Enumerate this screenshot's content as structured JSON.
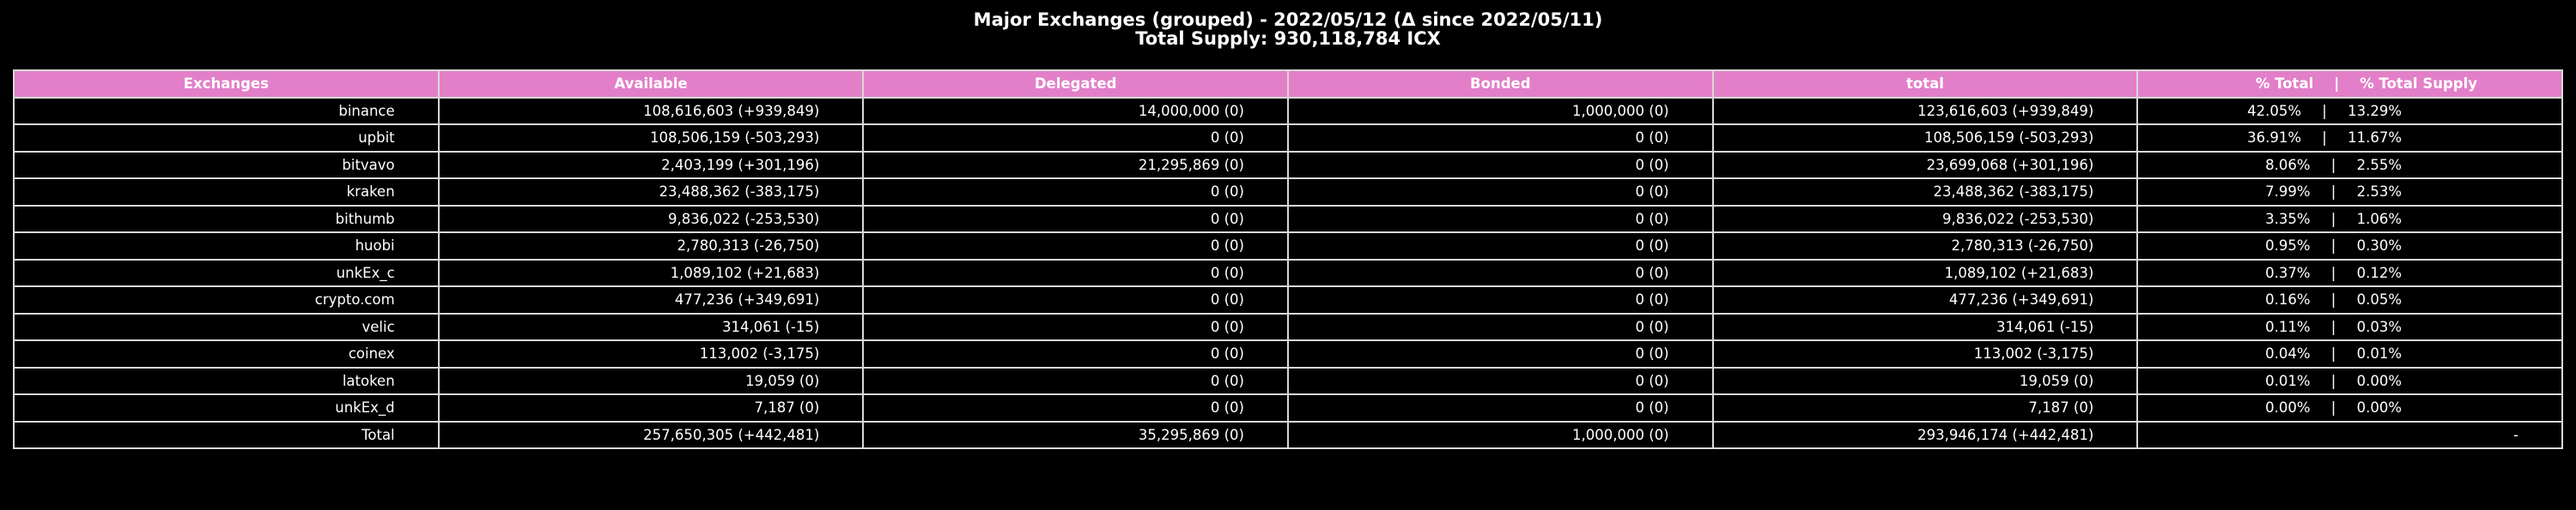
{
  "title": {
    "line1": "Major Exchanges (grouped) - 2022/05/12 (Δ since 2022/05/11)",
    "line2": "Total Supply: 930,118,784 ICX"
  },
  "colors": {
    "background": "#000000",
    "header_fill": "#e27fc8",
    "grid_line": "#d8d8d8",
    "text": "#ffffff"
  },
  "table": {
    "headers": [
      "Exchanges",
      "Available",
      "Delegated",
      "Bonded",
      "total"
    ],
    "share_header": {
      "pct_total": "% Total",
      "separator": "|",
      "pct_supply": "% Total Supply"
    },
    "separator": "|",
    "rows": [
      {
        "name": "binance",
        "available": "108,616,603 (+939,849)",
        "delegated": "14,000,000 (0)",
        "bonded": "1,000,000 (0)",
        "total": "123,616,603 (+939,849)",
        "pct_total": "42.05%",
        "pct_supply": "13.29%"
      },
      {
        "name": "upbit",
        "available": "108,506,159 (-503,293)",
        "delegated": "0 (0)",
        "bonded": "0 (0)",
        "total": "108,506,159 (-503,293)",
        "pct_total": "36.91%",
        "pct_supply": "11.67%"
      },
      {
        "name": "bitvavo",
        "available": "2,403,199 (+301,196)",
        "delegated": "21,295,869 (0)",
        "bonded": "0 (0)",
        "total": "23,699,068 (+301,196)",
        "pct_total": "8.06%",
        "pct_supply": "2.55%"
      },
      {
        "name": "kraken",
        "available": "23,488,362 (-383,175)",
        "delegated": "0 (0)",
        "bonded": "0 (0)",
        "total": "23,488,362 (-383,175)",
        "pct_total": "7.99%",
        "pct_supply": "2.53%"
      },
      {
        "name": "bithumb",
        "available": "9,836,022 (-253,530)",
        "delegated": "0 (0)",
        "bonded": "0 (0)",
        "total": "9,836,022 (-253,530)",
        "pct_total": "3.35%",
        "pct_supply": "1.06%"
      },
      {
        "name": "huobi",
        "available": "2,780,313 (-26,750)",
        "delegated": "0 (0)",
        "bonded": "0 (0)",
        "total": "2,780,313 (-26,750)",
        "pct_total": "0.95%",
        "pct_supply": "0.30%"
      },
      {
        "name": "unkEx_c",
        "available": "1,089,102 (+21,683)",
        "delegated": "0 (0)",
        "bonded": "0 (0)",
        "total": "1,089,102 (+21,683)",
        "pct_total": "0.37%",
        "pct_supply": "0.12%"
      },
      {
        "name": "crypto.com",
        "available": "477,236 (+349,691)",
        "delegated": "0 (0)",
        "bonded": "0 (0)",
        "total": "477,236 (+349,691)",
        "pct_total": "0.16%",
        "pct_supply": "0.05%"
      },
      {
        "name": "velic",
        "available": "314,061 (-15)",
        "delegated": "0 (0)",
        "bonded": "0 (0)",
        "total": "314,061 (-15)",
        "pct_total": "0.11%",
        "pct_supply": "0.03%"
      },
      {
        "name": "coinex",
        "available": "113,002 (-3,175)",
        "delegated": "0 (0)",
        "bonded": "0 (0)",
        "total": "113,002 (-3,175)",
        "pct_total": "0.04%",
        "pct_supply": "0.01%"
      },
      {
        "name": "latoken",
        "available": "19,059 (0)",
        "delegated": "0 (0)",
        "bonded": "0 (0)",
        "total": "19,059 (0)",
        "pct_total": "0.01%",
        "pct_supply": "0.00%"
      },
      {
        "name": "unkEx_d",
        "available": "7,187 (0)",
        "delegated": "0 (0)",
        "bonded": "0 (0)",
        "total": "7,187 (0)",
        "pct_total": "0.00%",
        "pct_supply": "0.00%"
      }
    ],
    "total_row": {
      "name": "Total",
      "available": "257,650,305 (+442,481)",
      "delegated": "35,295,869 (0)",
      "bonded": "1,000,000 (0)",
      "total": "293,946,174 (+442,481)",
      "share": "-"
    }
  }
}
